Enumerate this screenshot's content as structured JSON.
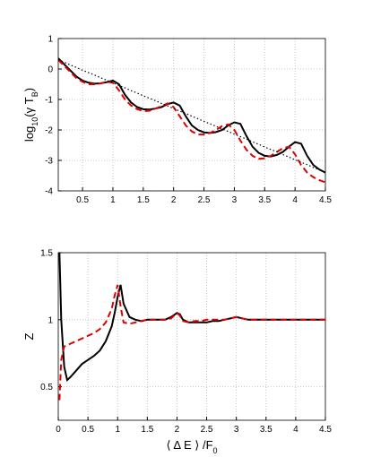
{
  "chart_data": [
    {
      "type": "line",
      "ylabel": [
        "log",
        "10",
        "(γ T",
        "B",
        ")"
      ],
      "x": [
        0.1,
        0.2,
        0.3,
        0.4,
        0.5,
        0.6,
        0.7,
        0.8,
        0.9,
        1.0,
        1.1,
        1.2,
        1.3,
        1.4,
        1.5,
        1.6,
        1.7,
        1.8,
        1.9,
        2.0,
        2.1,
        2.2,
        2.3,
        2.4,
        2.5,
        2.6,
        2.7,
        2.8,
        2.9,
        3.0,
        3.1,
        3.2,
        3.3,
        3.4,
        3.5,
        3.6,
        3.7,
        3.8,
        3.9,
        4.0,
        4.1,
        4.2,
        4.3,
        4.4,
        4.5
      ],
      "series": [
        {
          "color": "#000000",
          "dash": "solid",
          "values": [
            0.35,
            0.15,
            -0.05,
            -0.25,
            -0.38,
            -0.45,
            -0.48,
            -0.47,
            -0.43,
            -0.38,
            -0.5,
            -0.85,
            -1.1,
            -1.25,
            -1.32,
            -1.33,
            -1.3,
            -1.25,
            -1.15,
            -1.1,
            -1.2,
            -1.55,
            -1.85,
            -2.0,
            -2.08,
            -2.1,
            -2.07,
            -2.0,
            -1.85,
            -1.75,
            -1.8,
            -2.2,
            -2.55,
            -2.75,
            -2.85,
            -2.87,
            -2.82,
            -2.72,
            -2.55,
            -2.4,
            -2.45,
            -2.85,
            -3.15,
            -3.3,
            -3.4
          ]
        },
        {
          "color": "#e00000",
          "dash": "dashed",
          "values": [
            0.3,
            0.1,
            -0.1,
            -0.3,
            -0.42,
            -0.5,
            -0.5,
            -0.47,
            -0.42,
            -0.45,
            -0.7,
            -1.0,
            -1.2,
            -1.32,
            -1.38,
            -1.37,
            -1.3,
            -1.22,
            -1.13,
            -1.25,
            -1.55,
            -1.85,
            -2.05,
            -2.15,
            -2.15,
            -2.1,
            -2.0,
            -1.87,
            -1.82,
            -2.0,
            -2.35,
            -2.65,
            -2.85,
            -2.95,
            -2.93,
            -2.85,
            -2.72,
            -2.6,
            -2.55,
            -2.8,
            -3.15,
            -3.4,
            -3.55,
            -3.65,
            -3.72
          ]
        },
        {
          "color": "#000000",
          "dash": "dotted",
          "values": [
            0.3,
            0.22,
            0.13,
            0.05,
            -0.04,
            -0.12,
            -0.2,
            -0.29,
            -0.37,
            -0.46,
            -0.54,
            -0.62,
            -0.71,
            -0.79,
            -0.88,
            -0.96,
            -1.04,
            -1.13,
            -1.21,
            -1.3,
            -1.38,
            -1.46,
            -1.55,
            -1.63,
            -1.72,
            -1.8,
            -1.88,
            -1.97,
            -2.05,
            -2.14,
            -2.22,
            -2.3,
            -2.39,
            -2.47,
            -2.56,
            -2.64,
            -2.72,
            -2.81,
            -2.89,
            -2.98,
            -3.06,
            -3.14,
            -3.23,
            -3.31,
            -3.4
          ]
        }
      ],
      "xlim": [
        0.1,
        4.5
      ],
      "xticks": [
        0.5,
        1,
        1.5,
        2,
        2.5,
        3,
        3.5,
        4,
        4.5
      ],
      "ylim": [
        -4,
        1
      ],
      "yticks": [
        -4,
        -3,
        -2,
        -1,
        0,
        1
      ],
      "grid": true
    },
    {
      "type": "line",
      "xlabel": [
        "⟨ Δ E ⟩ /F",
        "0"
      ],
      "ylabel": [
        "Z"
      ],
      "x": [
        0.02,
        0.05,
        0.1,
        0.15,
        0.2,
        0.3,
        0.4,
        0.5,
        0.6,
        0.7,
        0.8,
        0.9,
        0.95,
        1.0,
        1.05,
        1.1,
        1.2,
        1.3,
        1.4,
        1.5,
        1.6,
        1.7,
        1.8,
        1.9,
        2.0,
        2.05,
        2.1,
        2.2,
        2.3,
        2.4,
        2.5,
        2.6,
        2.7,
        2.8,
        2.9,
        3.0,
        3.1,
        3.2,
        3.4,
        3.6,
        3.8,
        4.0,
        4.2,
        4.4,
        4.5
      ],
      "series": [
        {
          "color": "#000000",
          "dash": "solid",
          "values": [
            1.5,
            1.0,
            0.65,
            0.55,
            0.57,
            0.62,
            0.67,
            0.7,
            0.73,
            0.77,
            0.84,
            0.95,
            1.05,
            1.17,
            1.26,
            1.12,
            1.02,
            1.0,
            0.99,
            1.0,
            1.0,
            1.0,
            1.0,
            1.02,
            1.05,
            1.04,
            1.0,
            0.98,
            0.98,
            0.98,
            0.98,
            0.99,
            0.99,
            1.0,
            1.01,
            1.02,
            1.01,
            1.0,
            1.0,
            1.0,
            1.0,
            1.0,
            1.0,
            1.0,
            1.0
          ]
        },
        {
          "color": "#e00000",
          "dash": "dashed",
          "values": [
            0.4,
            0.7,
            0.8,
            0.81,
            0.82,
            0.84,
            0.86,
            0.88,
            0.9,
            0.93,
            0.98,
            1.08,
            1.18,
            1.26,
            1.1,
            0.98,
            0.97,
            0.98,
            0.99,
            1.0,
            1.0,
            1.0,
            1.0,
            1.01,
            1.05,
            1.03,
            0.99,
            0.98,
            0.99,
            0.99,
            1.0,
            1.0,
            1.0,
            1.0,
            1.01,
            1.02,
            1.01,
            1.0,
            1.0,
            1.0,
            1.0,
            1.0,
            1.0,
            1.0,
            1.0
          ]
        }
      ],
      "xlim": [
        0,
        4.5
      ],
      "xticks": [
        0,
        0.5,
        1,
        1.5,
        2,
        2.5,
        3,
        3.5,
        4,
        4.5
      ],
      "ylim": [
        0.25,
        1.5
      ],
      "yticks": [
        0.5,
        1,
        1.5
      ],
      "grid": true
    }
  ]
}
